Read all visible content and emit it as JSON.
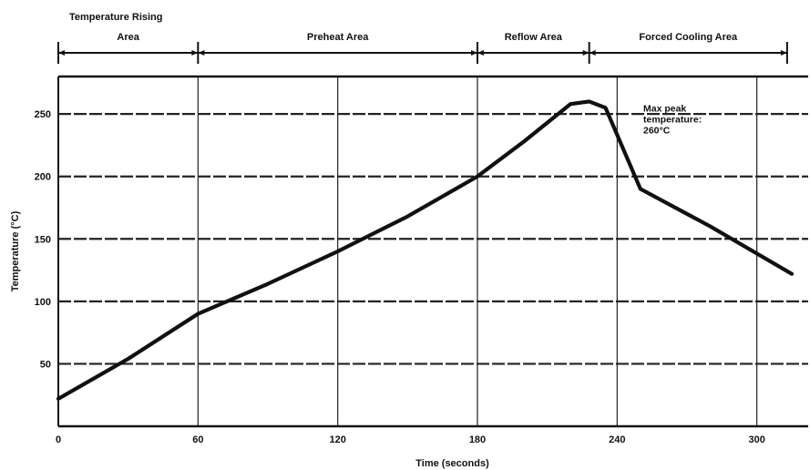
{
  "chart_data": {
    "type": "line",
    "title": "",
    "xlabel": "Time (seconds)",
    "ylabel": "Temperature (°C)",
    "xlim": [
      0,
      315
    ],
    "ylim": [
      0,
      280
    ],
    "grid": true,
    "x_ticks": [
      0,
      60,
      120,
      180,
      240,
      300
    ],
    "y_ticks": [
      50,
      100,
      150,
      200,
      250
    ],
    "x_tick_labels": [
      "0",
      "60",
      "120",
      "180",
      "240",
      "300"
    ],
    "y_tick_labels": [
      "50",
      "100",
      "150",
      "200",
      "250"
    ],
    "series": [
      {
        "x": [
          0,
          30,
          60,
          90,
          120,
          150,
          180,
          200,
          220,
          228,
          235,
          250,
          280,
          315
        ],
        "y": [
          22,
          54,
          90,
          114,
          140,
          168,
          200,
          228,
          258,
          260,
          255,
          190,
          160,
          122
        ]
      }
    ],
    "zones": [
      {
        "label_lines": [
          "Temperature Rising",
          "Area"
        ],
        "start": 0,
        "end": 60
      },
      {
        "label_lines": [
          "Preheat Area"
        ],
        "start": 60,
        "end": 180
      },
      {
        "label_lines": [
          "Reflow Area"
        ],
        "start": 180,
        "end": 228
      },
      {
        "label_lines": [
          "Forced Cooling Area"
        ],
        "start": 228,
        "end": 313
      }
    ],
    "annotation": {
      "lines": [
        "Max  peak",
        "temperature:",
        "260°C"
      ],
      "x": 252,
      "y": 252
    }
  }
}
